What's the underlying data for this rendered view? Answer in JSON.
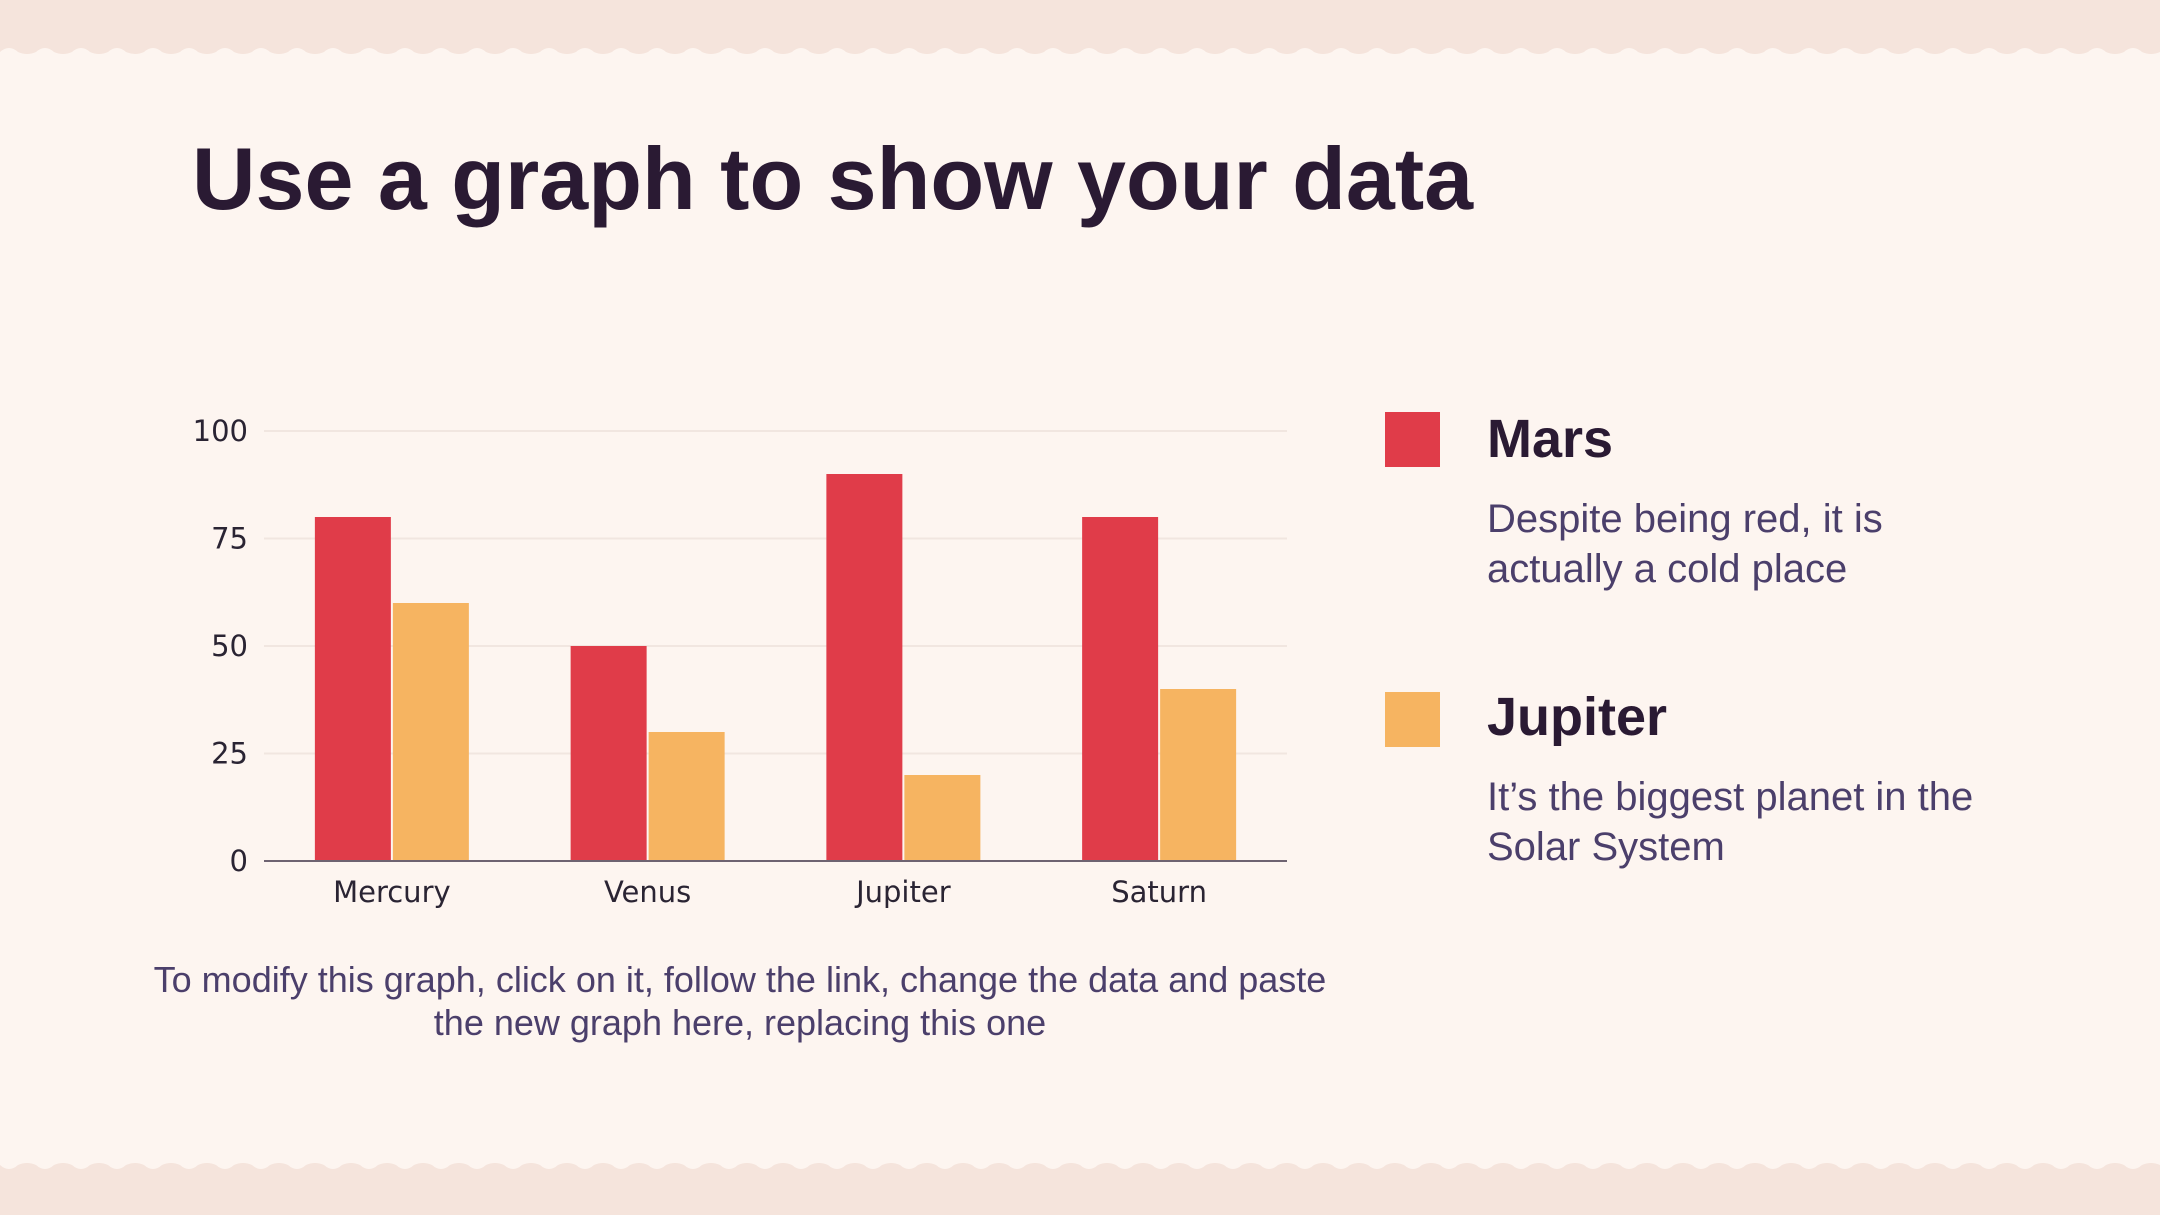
{
  "slide": {
    "title": "Use a graph to show your data",
    "caption": "To modify this graph, click on it, follow the link, change the data and paste the new graph here, replacing this one"
  },
  "legend": [
    {
      "name": "Mars",
      "description": "Despite being red, it is actually a cold place",
      "color": "#e03c49"
    },
    {
      "name": "Jupiter",
      "description": "It’s the biggest planet in the Solar System",
      "color": "#f6b461"
    }
  ],
  "colors": {
    "background": "#fdf5f0",
    "band": "#f5e4dc",
    "title": "#2a1a33",
    "body_text": "#4b3f6b"
  },
  "chart_data": {
    "type": "bar",
    "categories": [
      "Mercury",
      "Venus",
      "Jupiter",
      "Saturn"
    ],
    "series": [
      {
        "values": [
          80,
          50,
          90,
          80
        ],
        "color": "#e03c49"
      },
      {
        "values": [
          60,
          30,
          20,
          40
        ],
        "color": "#f6b461"
      }
    ],
    "ylim": [
      0,
      100
    ],
    "yticks": [
      0,
      25,
      50,
      75,
      100
    ],
    "grid": true,
    "legend": "right"
  }
}
